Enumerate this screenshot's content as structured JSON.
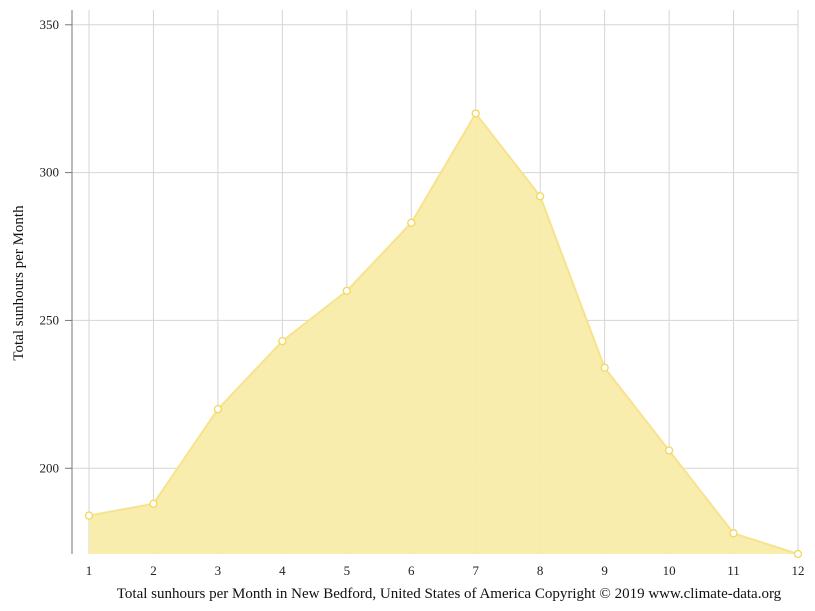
{
  "chart_data": {
    "type": "area",
    "x": [
      1,
      2,
      3,
      4,
      5,
      6,
      7,
      8,
      9,
      10,
      11,
      12
    ],
    "categories": [
      "1",
      "2",
      "3",
      "4",
      "5",
      "6",
      "7",
      "8",
      "9",
      "10",
      "11",
      "12"
    ],
    "series": [
      {
        "values": [
          184,
          188,
          220,
          243,
          260,
          283,
          320,
          292,
          234,
          206,
          178,
          171
        ]
      }
    ],
    "ylabel": "Total sunhours per Month",
    "ylim": [
      171,
      355
    ],
    "yticks": [
      200,
      250,
      300,
      350
    ],
    "ytick_labels": [
      "200",
      "250",
      "300",
      "350"
    ],
    "grid": true,
    "colors": {
      "fill": "#f9eca9",
      "line": "#f7e38e",
      "marker_fill": "#ffffff",
      "marker_stroke": "#f2d75a",
      "grid": "#d5d5d5",
      "axis": "#777777"
    }
  },
  "footer": "Total sunhours per Month in New Bedford, United States of America Copyright © 2019 www.climate-data.org"
}
